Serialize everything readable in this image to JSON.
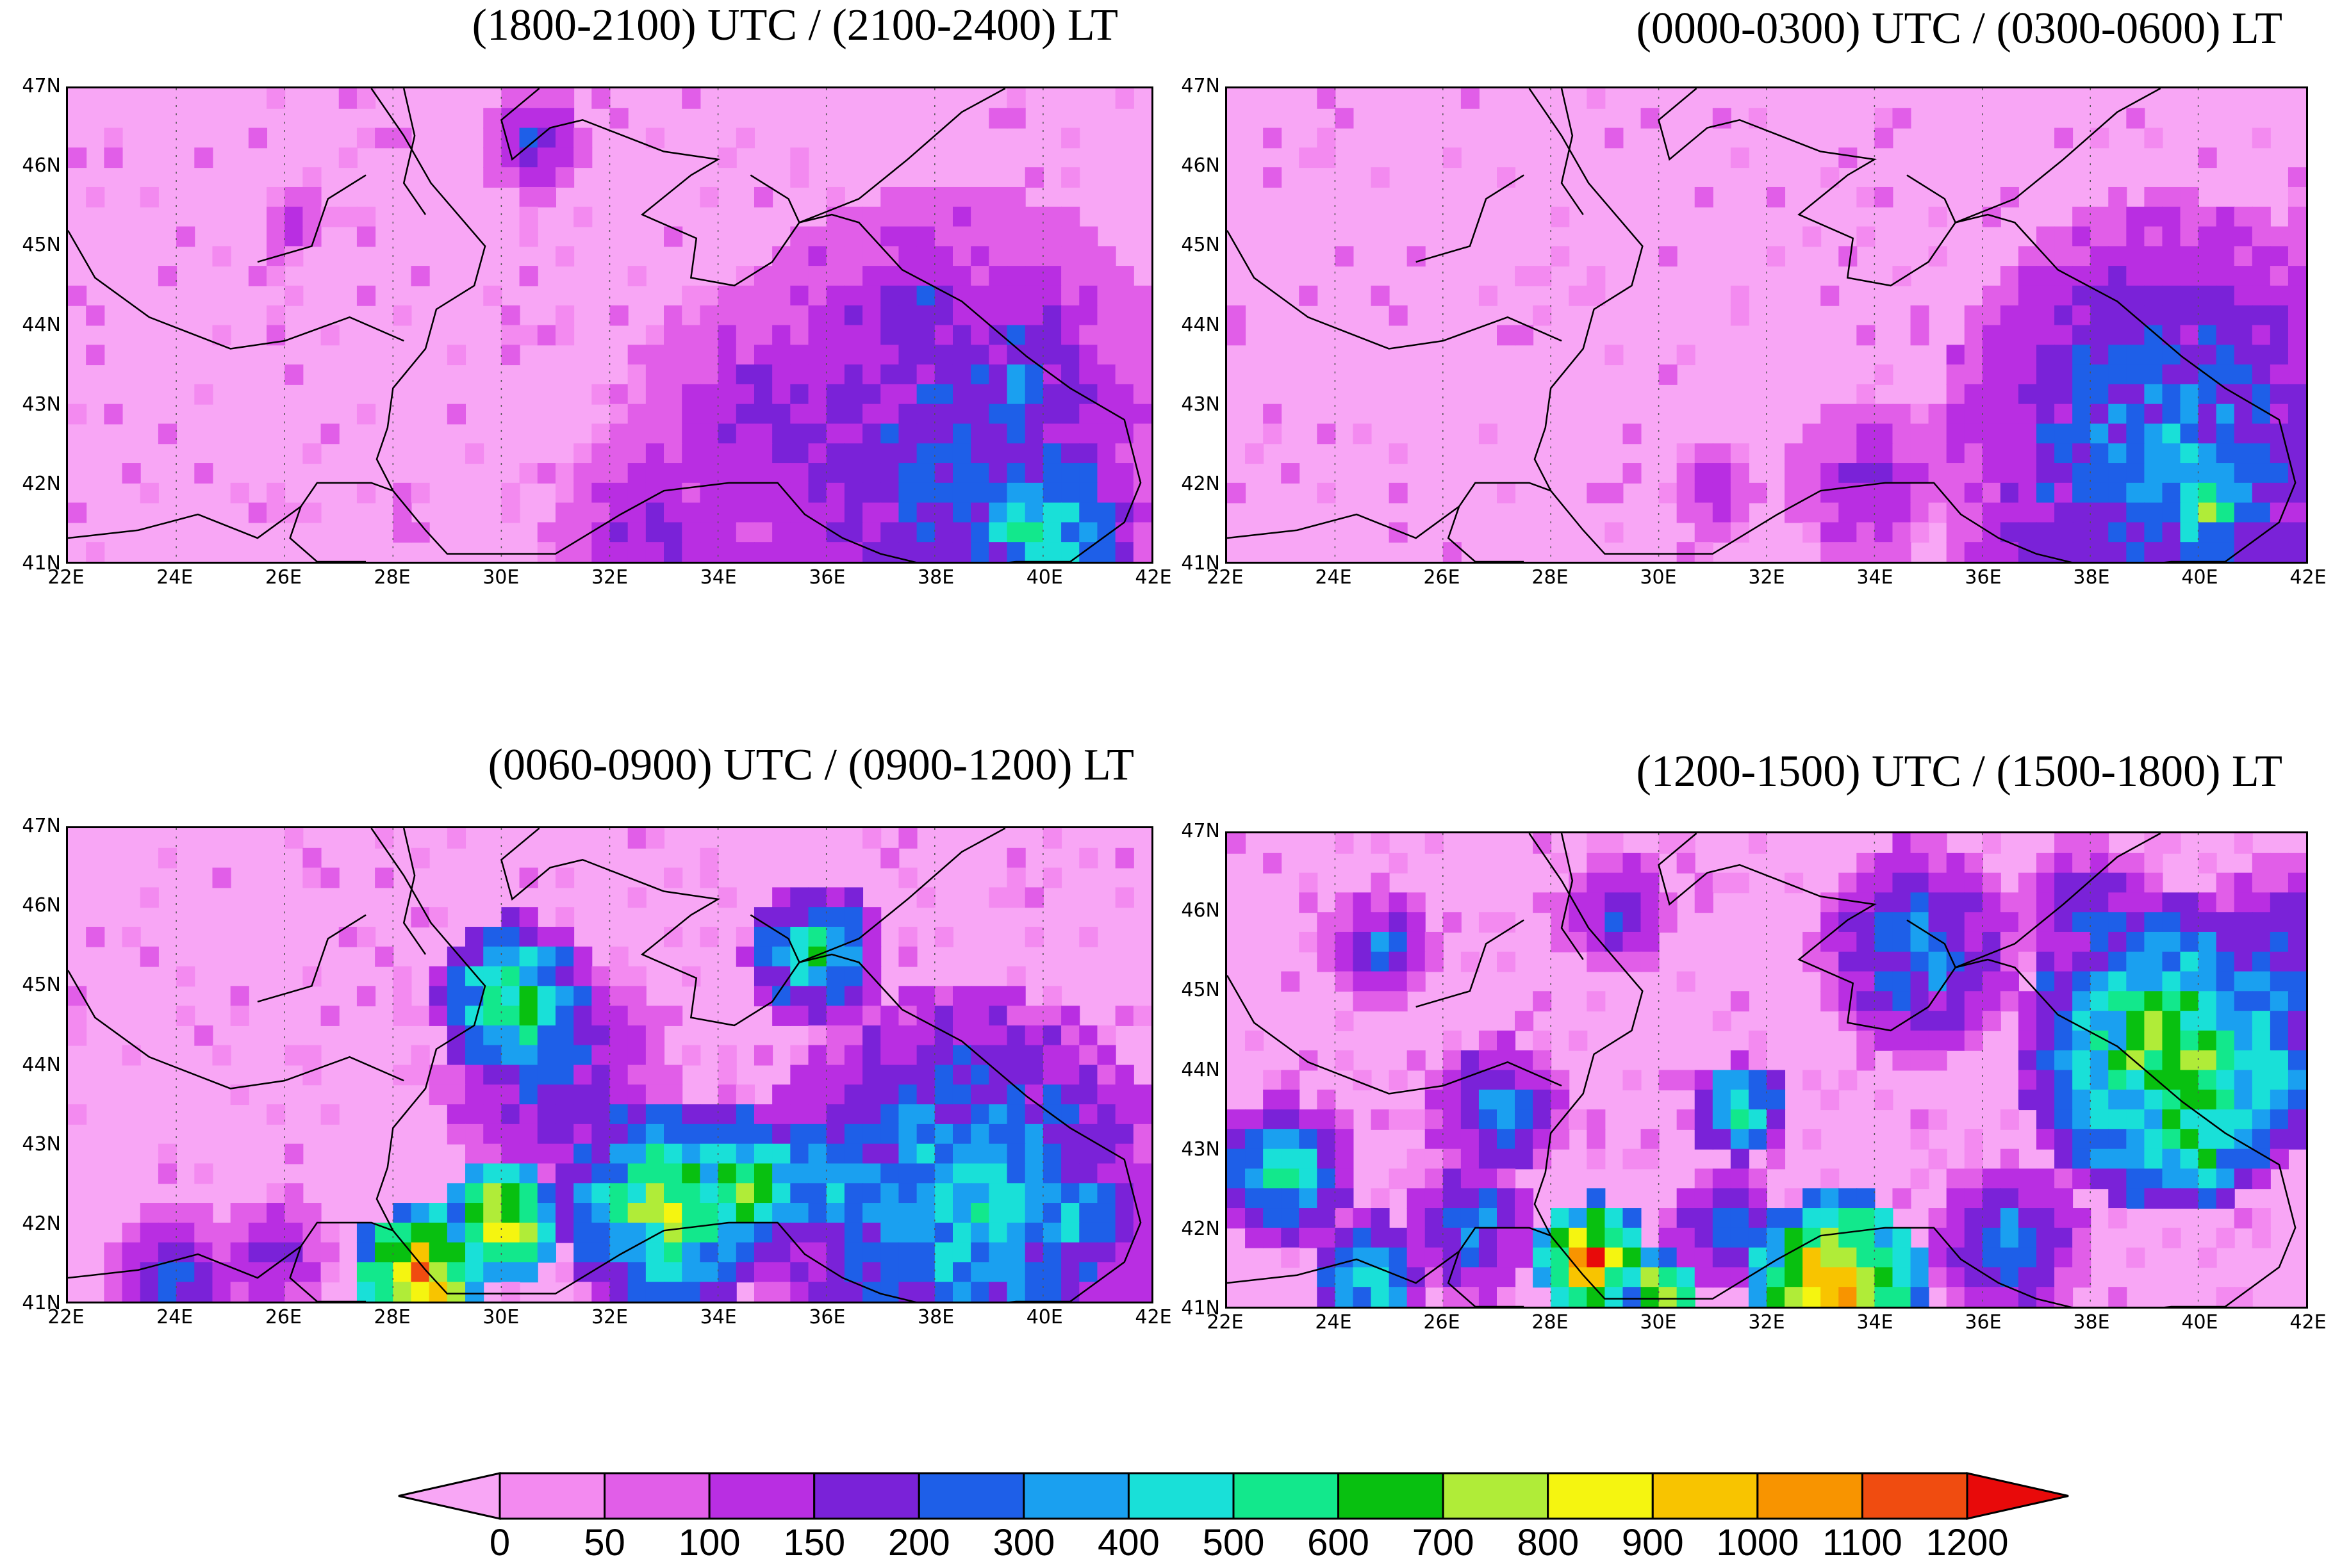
{
  "panels": [
    {
      "title": "(1800-2100) UTC / (2100-2400) LT",
      "intensity": 0.55,
      "seed": 11,
      "hotspots": [
        {
          "lon": 38.2,
          "lat": 42.3,
          "level": 5,
          "r": 2.2
        },
        {
          "lon": 40.0,
          "lat": 41.4,
          "level": 8,
          "r": 0.8
        },
        {
          "lon": 35.0,
          "lat": 42.8,
          "level": 4,
          "r": 1.2
        },
        {
          "lon": 37.6,
          "lat": 44.3,
          "level": 5,
          "r": 0.5
        },
        {
          "lon": 30.6,
          "lat": 46.3,
          "level": 5,
          "r": 0.45
        },
        {
          "lon": 33.0,
          "lat": 41.3,
          "level": 4,
          "r": 1.0
        },
        {
          "lon": 26.2,
          "lat": 45.3,
          "level": 3,
          "r": 0.3
        },
        {
          "lon": 39.5,
          "lat": 43.3,
          "level": 5,
          "r": 1.0
        }
      ]
    },
    {
      "title": "(0000-0300) UTC / (0300-0600) LT",
      "intensity": 0.5,
      "seed": 23,
      "hotspots": [
        {
          "lon": 39.5,
          "lat": 42.5,
          "level": 6,
          "r": 2.0
        },
        {
          "lon": 40.2,
          "lat": 41.7,
          "level": 9,
          "r": 0.5
        },
        {
          "lon": 38.3,
          "lat": 43.7,
          "level": 4,
          "r": 1.0
        },
        {
          "lon": 33.8,
          "lat": 42.0,
          "level": 4,
          "r": 0.7
        },
        {
          "lon": 31.0,
          "lat": 41.9,
          "level": 4,
          "r": 0.4
        },
        {
          "lon": 37.0,
          "lat": 41.3,
          "level": 4,
          "r": 0.8
        }
      ]
    },
    {
      "title": "(0060-0900) UTC / (0900-1200) LT",
      "intensity": 0.85,
      "seed": 37,
      "hotspots": [
        {
          "lon": 28.5,
          "lat": 41.3,
          "level": 14,
          "r": 0.6
        },
        {
          "lon": 30.0,
          "lat": 42.0,
          "level": 13,
          "r": 0.5
        },
        {
          "lon": 30.3,
          "lat": 44.8,
          "level": 9,
          "r": 0.7
        },
        {
          "lon": 33.0,
          "lat": 42.2,
          "level": 10,
          "r": 0.9
        },
        {
          "lon": 34.5,
          "lat": 42.5,
          "level": 10,
          "r": 0.6
        },
        {
          "lon": 38.5,
          "lat": 42.2,
          "level": 7,
          "r": 1.8
        },
        {
          "lon": 40.5,
          "lat": 42.0,
          "level": 7,
          "r": 0.6
        },
        {
          "lon": 35.8,
          "lat": 45.4,
          "level": 8,
          "r": 0.6
        },
        {
          "lon": 31.0,
          "lat": 43.8,
          "level": 5,
          "r": 1.0
        },
        {
          "lon": 24.0,
          "lat": 41.3,
          "level": 5,
          "r": 0.6
        },
        {
          "lon": 25.8,
          "lat": 41.6,
          "level": 4,
          "r": 0.5
        },
        {
          "lon": 36.0,
          "lat": 42.5,
          "level": 7,
          "r": 0.7
        }
      ]
    },
    {
      "title": "(1200-1500) UTC / (1500-1800) LT",
      "intensity": 1.0,
      "seed": 53,
      "hotspots": [
        {
          "lon": 33.3,
          "lat": 41.2,
          "level": 14,
          "r": 0.8
        },
        {
          "lon": 28.8,
          "lat": 41.6,
          "level": 14,
          "r": 0.5
        },
        {
          "lon": 30.1,
          "lat": 41.2,
          "level": 13,
          "r": 0.3
        },
        {
          "lon": 39.5,
          "lat": 44.2,
          "level": 10,
          "r": 1.3
        },
        {
          "lon": 41.0,
          "lat": 44.0,
          "level": 9,
          "r": 0.6
        },
        {
          "lon": 40.0,
          "lat": 43.0,
          "level": 9,
          "r": 0.5
        },
        {
          "lon": 23.0,
          "lat": 42.7,
          "level": 8,
          "r": 0.6
        },
        {
          "lon": 31.5,
          "lat": 43.5,
          "level": 9,
          "r": 0.4
        },
        {
          "lon": 34.8,
          "lat": 45.5,
          "level": 6,
          "r": 0.9
        },
        {
          "lon": 36.5,
          "lat": 41.8,
          "level": 6,
          "r": 0.7
        },
        {
          "lon": 24.6,
          "lat": 41.4,
          "level": 8,
          "r": 0.5
        },
        {
          "lon": 26.5,
          "lat": 42.0,
          "level": 6,
          "r": 0.6
        },
        {
          "lon": 31.2,
          "lat": 42.0,
          "level": 6,
          "r": 0.5
        },
        {
          "lon": 29.2,
          "lat": 46.0,
          "level": 5,
          "r": 0.5
        },
        {
          "lon": 24.8,
          "lat": 45.6,
          "level": 5,
          "r": 0.5
        },
        {
          "lon": 38.0,
          "lat": 46.0,
          "level": 5,
          "r": 0.6
        },
        {
          "lon": 41.5,
          "lat": 45.8,
          "level": 5,
          "r": 0.6
        },
        {
          "lon": 27.0,
          "lat": 43.5,
          "level": 6,
          "r": 0.6
        }
      ]
    }
  ],
  "axes": {
    "lat_labels": [
      "47N",
      "46N",
      "45N",
      "44N",
      "43N",
      "42N",
      "41N"
    ],
    "lon_labels": [
      "22E",
      "24E",
      "26E",
      "28E",
      "30E",
      "32E",
      "34E",
      "36E",
      "38E",
      "40E",
      "42E"
    ],
    "lon_range": [
      22,
      42
    ],
    "lat_range": [
      41,
      47
    ]
  },
  "colorbar": {
    "labels": [
      "0",
      "50",
      "100",
      "150",
      "200",
      "300",
      "400",
      "500",
      "600",
      "700",
      "800",
      "900",
      "1000",
      "1100",
      "1200"
    ],
    "colors": [
      "#f8a6f5",
      "#f38af0",
      "#e15ee8",
      "#b92ee2",
      "#7a22d8",
      "#1e5fe8",
      "#1aa0f0",
      "#19e0d8",
      "#12e88c",
      "#08c010",
      "#b0ec38",
      "#f5f510",
      "#f8c400",
      "#f89400",
      "#f04c10",
      "#e80a0a"
    ]
  },
  "coastline_color": "#000000"
}
